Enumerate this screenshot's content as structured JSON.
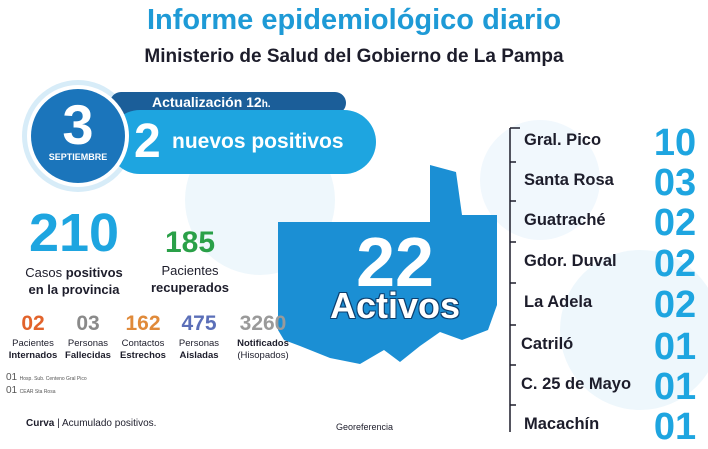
{
  "header": {
    "title": "Informe epidemiológico diario",
    "subtitle": "Ministerio de Salud del Gobierno de La Pampa"
  },
  "date": {
    "day": "3",
    "month": "SEPTIEMBRE"
  },
  "update": {
    "label": "Actualización 12",
    "suffix": "h."
  },
  "new_cases": {
    "value": "2",
    "label": "nuevos positivos"
  },
  "totals": {
    "cases": {
      "value": "210",
      "line1_a": "Casos ",
      "line1_b": "positivos",
      "line2": "en la provincia"
    },
    "recovered": {
      "value": "185",
      "line1": "Pacientes",
      "line2": "recuperados"
    }
  },
  "stats": [
    {
      "value": "02",
      "line1": "Pacientes",
      "line2": "Internados"
    },
    {
      "value": "03",
      "line1": "Personas",
      "line2": "Fallecidas"
    },
    {
      "value": "162",
      "line1": "Contactos",
      "line2": "Estrechos"
    },
    {
      "value": "475",
      "line1": "Personas",
      "line2": "Aisladas"
    },
    {
      "value": "3260",
      "line1": "Notificados",
      "line2": "(Hisopados)"
    }
  ],
  "hospital_notes": [
    {
      "count": "01",
      "place": "Hosp. Sub. Centeno Gral Pico"
    },
    {
      "count": "01",
      "place": "CEAR Sta Rosa"
    }
  ],
  "map": {
    "value": "22",
    "label": "Activos"
  },
  "localities": [
    {
      "name": "Gral. Pico",
      "value": "10"
    },
    {
      "name": "Santa Rosa",
      "value": "03"
    },
    {
      "name": "Guatraché",
      "value": "02"
    },
    {
      "name": "Gdor. Duval",
      "value": "02"
    },
    {
      "name": "La Adela",
      "value": "02"
    },
    {
      "name": "Catriló",
      "value": "01"
    },
    {
      "name": "C. 25 de Mayo",
      "value": "01"
    },
    {
      "name": "Macachín",
      "value": "01"
    }
  ],
  "footer": {
    "curve_a": "Curva",
    "curve_b": " | Acumulado positivos.",
    "geo": "Georeferencia"
  }
}
